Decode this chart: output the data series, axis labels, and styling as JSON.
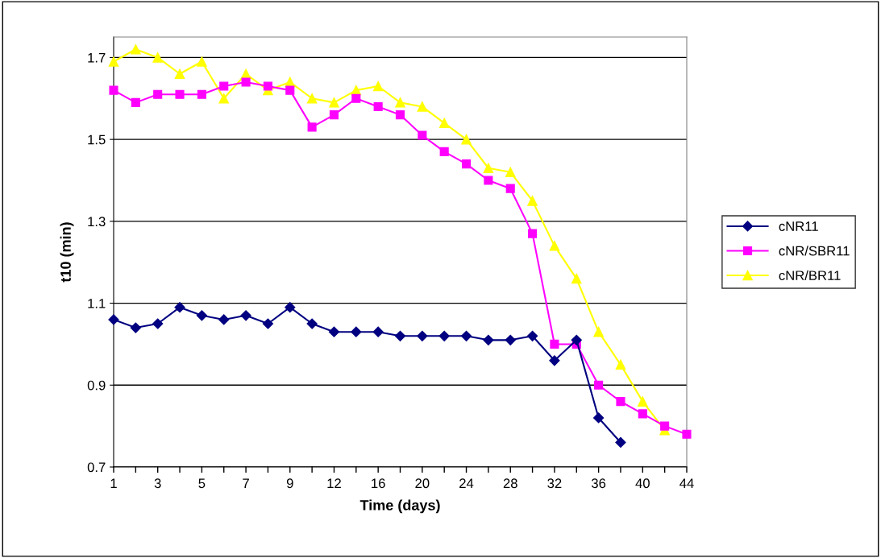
{
  "chart_data": {
    "type": "line",
    "xlabel": "Time (days)",
    "ylabel": "t10 (min)",
    "categories": [
      "1",
      null,
      "3",
      null,
      "5",
      null,
      "7",
      null,
      "9",
      null,
      "12",
      null,
      "16",
      null,
      "20",
      null,
      "24",
      null,
      "28",
      null,
      "32",
      null,
      "36",
      null,
      "40",
      null,
      "44"
    ],
    "series": [
      {
        "name": "cNR11",
        "color": "#000080",
        "marker": "diamond",
        "values": [
          1.06,
          1.04,
          1.05,
          1.09,
          1.07,
          1.06,
          1.07,
          1.05,
          1.09,
          1.05,
          1.03,
          1.03,
          1.03,
          1.02,
          1.02,
          1.02,
          1.02,
          1.01,
          1.01,
          1.02,
          0.96,
          1.01,
          0.82,
          0.76,
          null,
          null,
          null
        ]
      },
      {
        "name": "cNR/SBR11",
        "color": "#ff00ff",
        "marker": "square",
        "values": [
          1.62,
          1.59,
          1.61,
          1.61,
          1.61,
          1.63,
          1.64,
          1.63,
          1.62,
          1.53,
          1.56,
          1.6,
          1.58,
          1.56,
          1.51,
          1.47,
          1.44,
          1.4,
          1.38,
          1.27,
          1.0,
          1.0,
          0.9,
          0.86,
          0.83,
          0.8,
          0.78
        ]
      },
      {
        "name": "cNR/BR11",
        "color": "#ffff00",
        "marker": "triangle",
        "values": [
          1.69,
          1.72,
          1.7,
          1.66,
          1.69,
          1.6,
          1.66,
          1.62,
          1.64,
          1.6,
          1.59,
          1.62,
          1.63,
          1.59,
          1.58,
          1.54,
          1.5,
          1.43,
          1.42,
          1.35,
          1.24,
          1.16,
          1.03,
          0.95,
          0.86,
          0.79,
          null
        ]
      }
    ],
    "ylim": [
      0.7,
      1.75
    ],
    "yticks": [
      0.7,
      0.9,
      1.1,
      1.3,
      1.5,
      1.7
    ],
    "grid": "y",
    "legend": "right",
    "line_style": "solid"
  }
}
